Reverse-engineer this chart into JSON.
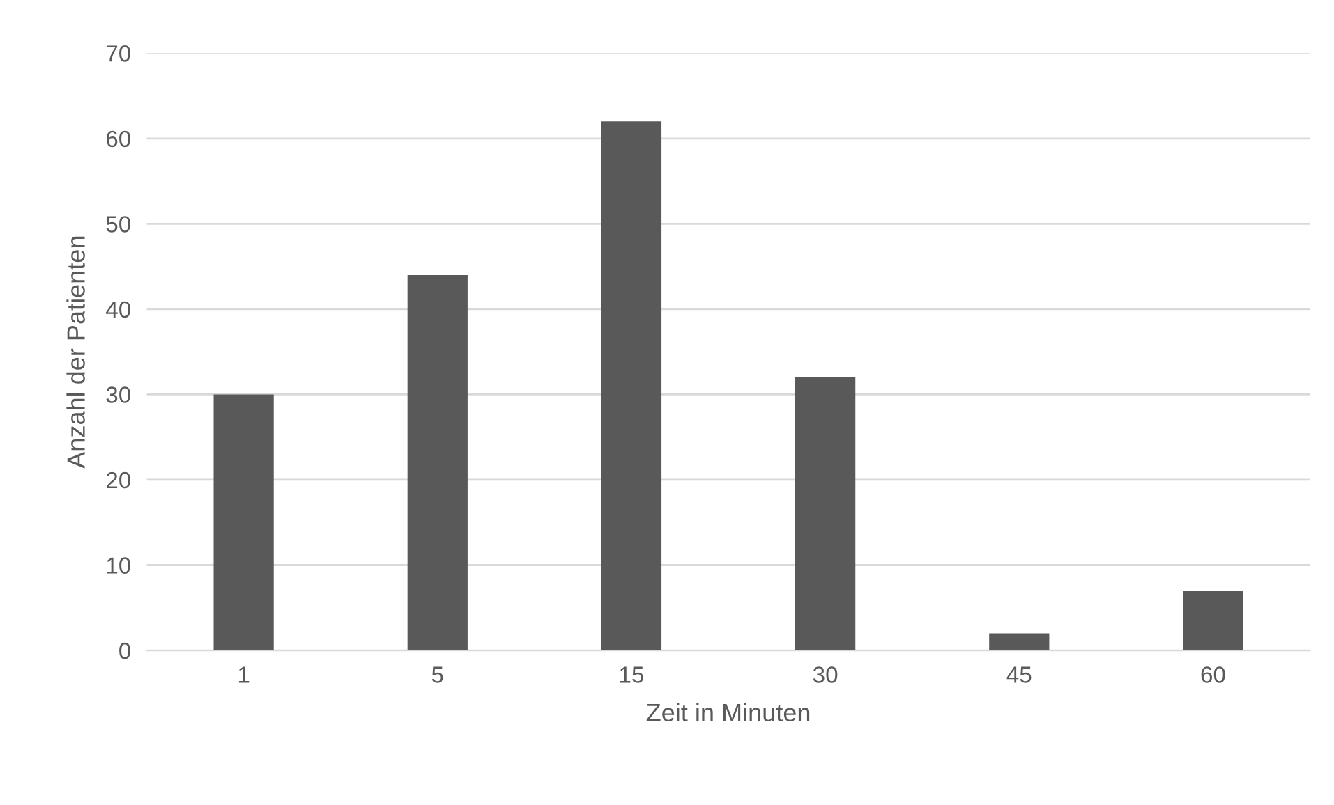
{
  "chart_data": {
    "type": "bar",
    "xlabel": "Zeit in Minuten",
    "ylabel": "Anzahl der Patienten",
    "categories": [
      "1",
      "5",
      "15",
      "30",
      "45",
      "60"
    ],
    "values": [
      30,
      44,
      62,
      32,
      2,
      7
    ],
    "color": "#595959",
    "ylim": [
      0,
      70
    ],
    "yticks": [
      0,
      10,
      20,
      30,
      40,
      50,
      60,
      70
    ],
    "grid": "y",
    "legend": false
  }
}
